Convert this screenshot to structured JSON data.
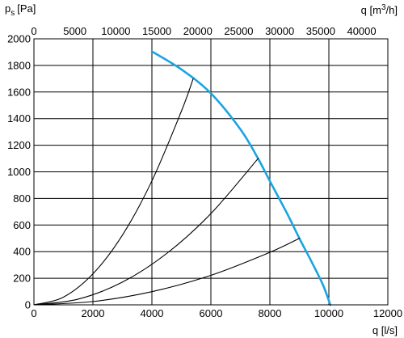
{
  "chart_data": {
    "type": "line",
    "title": "",
    "ylabel": "p",
    "ylabel_sub": "s",
    "ylabel_unit": "[Pa]",
    "xlabel": "q [l/s]",
    "x2label_pre": "q [m",
    "x2label_sup": "3",
    "x2label_post": "/h]",
    "xlim": [
      0,
      12000
    ],
    "ylim": [
      0,
      2000
    ],
    "x2lim": [
      0,
      43200
    ],
    "x_ticks": [
      "0",
      "2000",
      "4000",
      "6000",
      "8000",
      "10000",
      "12000"
    ],
    "y_ticks": [
      "0",
      "200",
      "400",
      "600",
      "800",
      "1000",
      "1200",
      "1400",
      "1600",
      "1800",
      "2000"
    ],
    "x2_ticks": [
      "0",
      "5000",
      "10000",
      "15000",
      "20000",
      "25000",
      "30000",
      "35000",
      "40000"
    ],
    "grid": true,
    "colors": {
      "fan_curve": "#1ba4e0",
      "system_curves": "#000000",
      "grid": "#000000"
    },
    "series": [
      {
        "role": "fan-curve",
        "x": [
          4000,
          5000,
          6000,
          7000,
          7600,
          8000,
          8600,
          9000,
          9400,
          9800,
          10050
        ],
        "y": [
          1905,
          1770,
          1590,
          1320,
          1100,
          930,
          680,
          500,
          330,
          150,
          0
        ]
      },
      {
        "role": "system-curve",
        "x": [
          0,
          1000,
          2000,
          3000,
          4000,
          5000,
          5400
        ],
        "y": [
          0,
          58,
          233,
          524,
          932,
          1456,
          1700
        ]
      },
      {
        "role": "system-curve",
        "x": [
          0,
          1500,
          3000,
          4500,
          6000,
          7600
        ],
        "y": [
          0,
          43,
          171,
          386,
          686,
          1100
        ]
      },
      {
        "role": "system-curve",
        "x": [
          0,
          2000,
          4000,
          6000,
          8000,
          9000
        ],
        "y": [
          0,
          25,
          99,
          222,
          395,
          500
        ]
      }
    ]
  }
}
